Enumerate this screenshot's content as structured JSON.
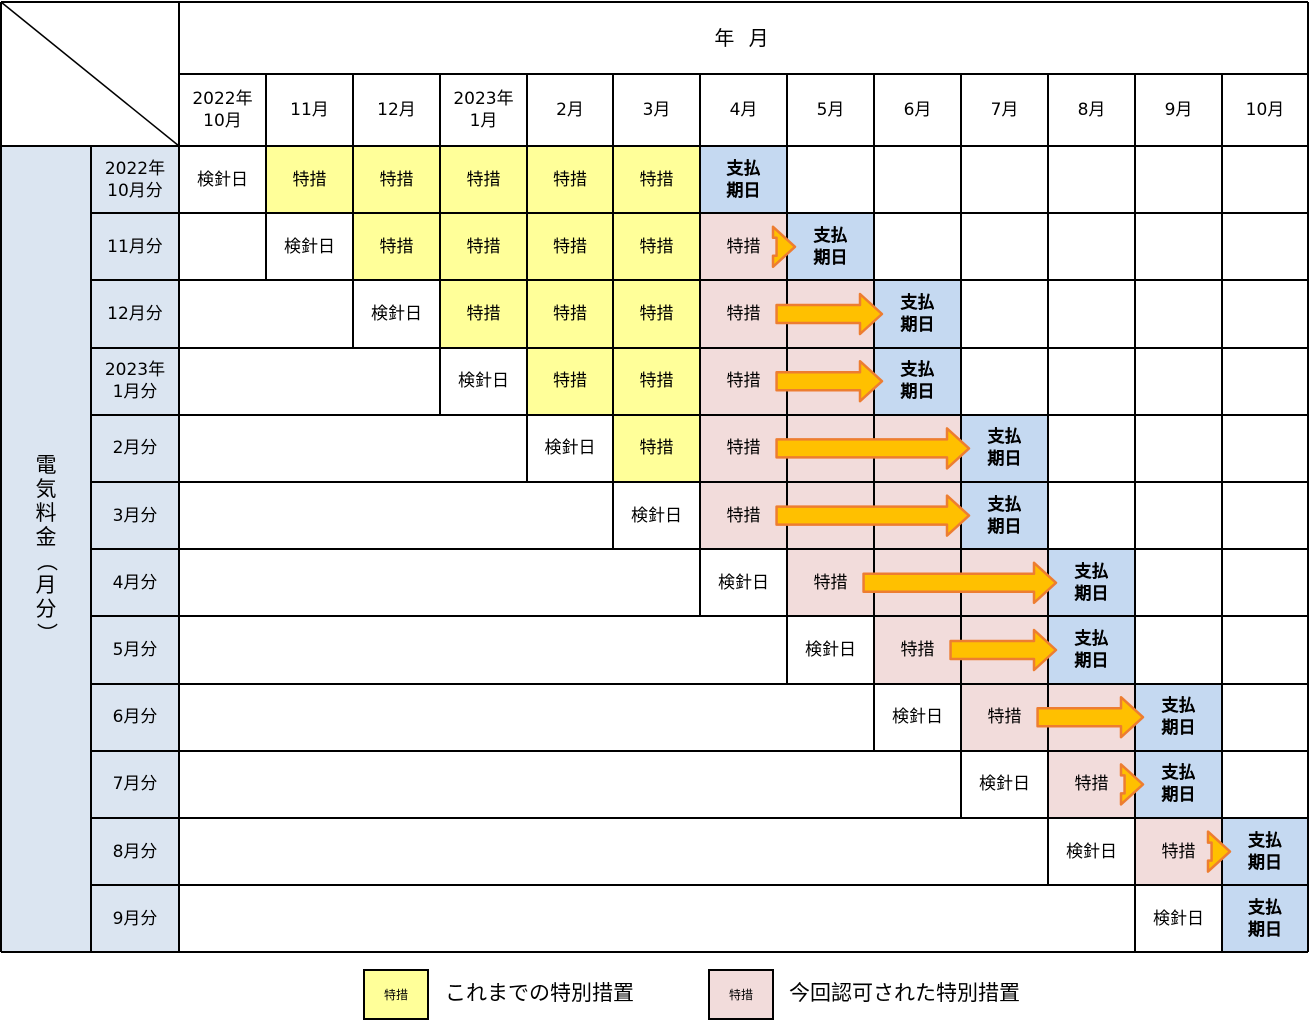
{
  "header": {
    "year_month": "年 月",
    "months": [
      "2022年\n10月",
      "11月",
      "12月",
      "2023年\n1月",
      "2月",
      "3月",
      "4月",
      "5月",
      "6月",
      "7月",
      "8月",
      "9月",
      "10月"
    ]
  },
  "side": {
    "vertical_title_chars": [
      "電",
      "気",
      "料",
      "金",
      "（",
      "月",
      "分",
      "）"
    ],
    "vertical_title": "電気料金（月分）"
  },
  "rows": [
    {
      "label": "2022年\n10月分",
      "meter_col": 0,
      "special_end": 6,
      "pay_col": 6,
      "arrow": false
    },
    {
      "label": "11月分",
      "meter_col": 1,
      "special_end": 7,
      "pay_col": 7,
      "arrow": true
    },
    {
      "label": "12月分",
      "meter_col": 2,
      "special_end": 7,
      "pay_col": 8,
      "arrow": true
    },
    {
      "label": "2023年\n1月分",
      "meter_col": 3,
      "special_end": 7,
      "pay_col": 8,
      "arrow": true
    },
    {
      "label": "2月分",
      "meter_col": 4,
      "special_end": 7,
      "pay_col": 9,
      "arrow": true
    },
    {
      "label": "3月分",
      "meter_col": 5,
      "special_end": 7,
      "pay_col": 9,
      "arrow": true
    },
    {
      "label": "4月分",
      "meter_col": 6,
      "special_end": 8,
      "pay_col": 10,
      "arrow": true
    },
    {
      "label": "5月分",
      "meter_col": 7,
      "special_end": 9,
      "pay_col": 10,
      "arrow": true
    },
    {
      "label": "6月分",
      "meter_col": 8,
      "special_end": 10,
      "pay_col": 11,
      "arrow": true
    },
    {
      "label": "7月分",
      "meter_col": 9,
      "special_end": 11,
      "pay_col": 11,
      "arrow": true
    },
    {
      "label": "8月分",
      "meter_col": 10,
      "special_end": 12,
      "pay_col": 12,
      "arrow": true
    },
    {
      "label": "9月分",
      "meter_col": 11,
      "special_end": 12,
      "pay_col": 12,
      "arrow": false
    }
  ],
  "labels": {
    "meter_reading": "検針日",
    "special": "特措",
    "payment_due": "支払\n期日"
  },
  "legend": {
    "previous_box": "特措",
    "previous_text": "これまでの特別措置",
    "current_box": "特措",
    "current_text": "今回認可された特別措置"
  },
  "colors": {
    "previous_special": "#ffff99",
    "current_special": "#f2dcdb",
    "payment_due": "#c5d9f1",
    "row_header": "#dbe5f1",
    "arrow_fill": "#ffc000",
    "arrow_stroke": "#ed7d31"
  }
}
